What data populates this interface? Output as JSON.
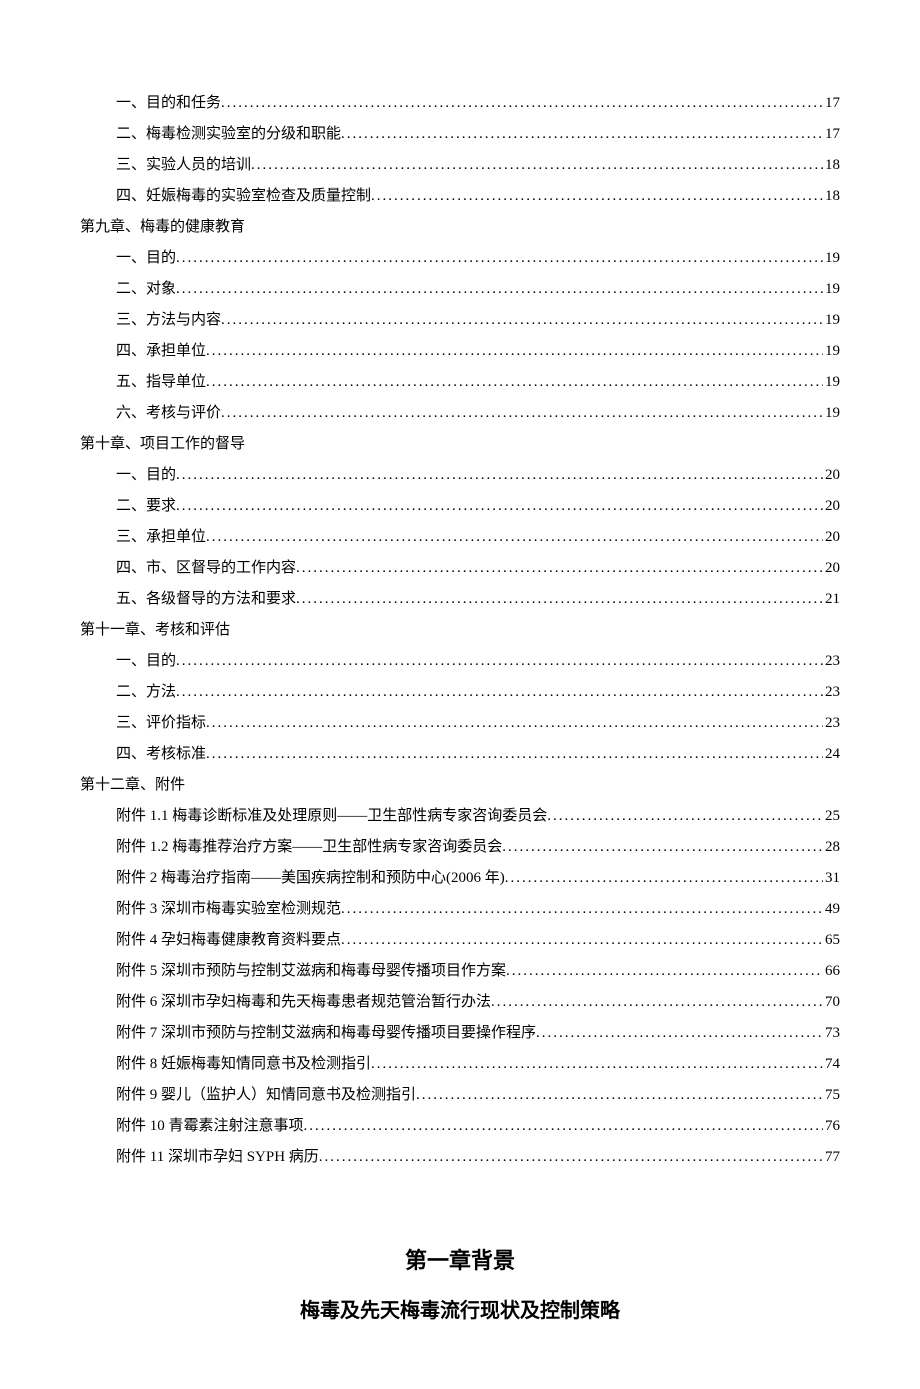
{
  "text_color": "#000000",
  "background": "#ffffff",
  "font_size_body": 15,
  "font_size_title": 22,
  "font_size_sub": 20,
  "entries": [
    {
      "kind": "item",
      "indent": 1,
      "label": "一、目的和任务",
      "page": "17"
    },
    {
      "kind": "item",
      "indent": 1,
      "label": "二、梅毒检测实验室的分级和职能",
      "page": "17"
    },
    {
      "kind": "item",
      "indent": 1,
      "label": "三、实验人员的培训",
      "page": "18"
    },
    {
      "kind": "item",
      "indent": 1,
      "label": "四、妊娠梅毒的实验室检查及质量控制",
      "page": "18"
    },
    {
      "kind": "heading",
      "indent": 0,
      "label": "第九章、梅毒的健康教育"
    },
    {
      "kind": "item",
      "indent": 1,
      "label": "一、目的",
      "page": "19"
    },
    {
      "kind": "item",
      "indent": 1,
      "label": "二、对象",
      "page": "19"
    },
    {
      "kind": "item",
      "indent": 1,
      "label": "三、方法与内容",
      "page": "19"
    },
    {
      "kind": "item",
      "indent": 1,
      "label": "四、承担单位",
      "page": "19"
    },
    {
      "kind": "item",
      "indent": 1,
      "label": "五、指导单位",
      "page": "19"
    },
    {
      "kind": "item",
      "indent": 1,
      "label": "六、考核与评价",
      "page": "19"
    },
    {
      "kind": "heading",
      "indent": 0,
      "label": "第十章、项目工作的督导"
    },
    {
      "kind": "item",
      "indent": 1,
      "label": "一、目的",
      "page": "20"
    },
    {
      "kind": "item",
      "indent": 1,
      "label": "二、要求",
      "page": "20"
    },
    {
      "kind": "item",
      "indent": 1,
      "label": "三、承担单位",
      "page": "20"
    },
    {
      "kind": "item",
      "indent": 1,
      "label": "四、市、区督导的工作内容",
      "page": "20"
    },
    {
      "kind": "item",
      "indent": 1,
      "label": "五、各级督导的方法和要求",
      "page": "21"
    },
    {
      "kind": "heading",
      "indent": 0,
      "label": "第十一章、考核和评估"
    },
    {
      "kind": "item",
      "indent": 1,
      "label": "一、目的",
      "page": "23"
    },
    {
      "kind": "item",
      "indent": 1,
      "label": "二、方法",
      "page": "23"
    },
    {
      "kind": "item",
      "indent": 1,
      "label": "三、评价指标",
      "page": "23"
    },
    {
      "kind": "item",
      "indent": 1,
      "label": "四、考核标准",
      "page": "24"
    },
    {
      "kind": "heading",
      "indent": 0,
      "label": "第十二章、附件"
    },
    {
      "kind": "item",
      "indent": 1,
      "label": "附件 1.1 梅毒诊断标准及处理原则——卫生部性病专家咨询委员会",
      "page": "25"
    },
    {
      "kind": "item",
      "indent": 1,
      "label": "附件 1.2 梅毒推荐治疗方案——卫生部性病专家咨询委员会",
      "page": "28"
    },
    {
      "kind": "item",
      "indent": 1,
      "label": "附件 2 梅毒治疗指南——美国疾病控制和预防中心(2006 年)",
      "page": "31"
    },
    {
      "kind": "item",
      "indent": 1,
      "label": "附件 3 深圳市梅毒实验室检测规范",
      "page": "49"
    },
    {
      "kind": "item",
      "indent": 1,
      "label": "附件 4 孕妇梅毒健康教育资料要点",
      "page": "65"
    },
    {
      "kind": "item",
      "indent": 1,
      "label": "附件 5 深圳市预防与控制艾滋病和梅毒母婴传播项目作方案",
      "page": "66"
    },
    {
      "kind": "item",
      "indent": 1,
      "label": "附件 6 深圳市孕妇梅毒和先天梅毒患者规范管治暂行办法",
      "page": "70"
    },
    {
      "kind": "item",
      "indent": 1,
      "label": "附件 7 深圳市预防与控制艾滋病和梅毒母婴传播项目要操作程序",
      "page": "73"
    },
    {
      "kind": "item",
      "indent": 1,
      "label": "附件 8 妊娠梅毒知情同意书及检测指引",
      "page": "74"
    },
    {
      "kind": "item",
      "indent": 1,
      "label": "附件 9 婴儿（监护人）知情同意书及检测指引",
      "page": "75"
    },
    {
      "kind": "item",
      "indent": 1,
      "label": "附件 10 青霉素注射注意事项",
      "page": "76"
    },
    {
      "kind": "item",
      "indent": 1,
      "label": "附件 11 深圳市孕妇 SYPH 病历",
      "page": "77"
    }
  ],
  "chapter_title": "第一章背景",
  "chapter_sub": "梅毒及先天梅毒流行现状及控制策略"
}
